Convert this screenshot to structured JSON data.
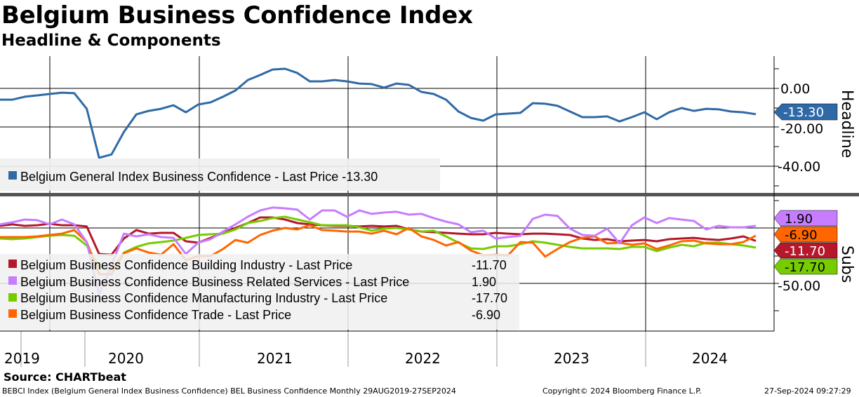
{
  "header": {
    "title": "Belgium Business Confidence Index",
    "subtitle": "Headline & Components"
  },
  "colors": {
    "headline": "#2f6aa6",
    "building": "#b5172b",
    "services": "#c77dff",
    "manufacturing": "#77cc00",
    "trade": "#ff6600"
  },
  "chart_data": [
    {
      "type": "line",
      "panel": "Headline",
      "x_start": "Aug 2019",
      "x_end": "Sep 2024",
      "frequency": "Monthly",
      "ylim": [
        -53,
        17
      ],
      "yticks": [
        "0.00",
        "-20.00",
        "-40.00"
      ],
      "ytick_values": [
        0,
        -20,
        -40
      ],
      "last_value_tag": "-13.30",
      "legend": "Belgium General Index Business Confidence - Last Price -13.30",
      "series": [
        {
          "name": "Belgium General Index Business Confidence",
          "key": "headline",
          "values": [
            -5.8,
            -5.8,
            -4.3,
            -3.6,
            -2.9,
            -2.2,
            -2.5,
            -10.5,
            -35.7,
            -34.0,
            -22.4,
            -13.4,
            -11.6,
            -10.5,
            -8.7,
            -12.3,
            -8.3,
            -7.2,
            -4.3,
            -1.1,
            4.3,
            6.9,
            9.7,
            10.1,
            7.9,
            3.6,
            3.6,
            4.3,
            3.6,
            2.5,
            2.2,
            0.4,
            2.5,
            1.8,
            -1.8,
            -2.9,
            -5.8,
            -11.9,
            -15.2,
            -16.6,
            -13.4,
            -13.0,
            -12.6,
            -7.6,
            -7.9,
            -9.0,
            -11.9,
            -14.8,
            -14.8,
            -14.4,
            -17.0,
            -14.8,
            -12.3,
            -15.9,
            -12.3,
            -10.1,
            -11.6,
            -10.5,
            -10.8,
            -11.9,
            -12.3,
            -13.3
          ]
        }
      ]
    },
    {
      "type": "line",
      "panel": "Subs",
      "x_start": "Aug 2019",
      "x_end": "Sep 2024",
      "ylim": [
        -93,
        28
      ],
      "yticks": [
        "-50.00"
      ],
      "ytick_values": [
        -50
      ],
      "gridlines": [
        0,
        -50
      ],
      "series": [
        {
          "name": "Belgium Business Confidence Building Industry",
          "key": "building",
          "legend_label": "Belgium Business Confidence Building Industry - Last Price",
          "last": "-11.70",
          "values": [
            1.9,
            3.2,
            1.9,
            2.5,
            3.8,
            2.5,
            2.5,
            1.3,
            -23.4,
            -24.1,
            -9.5,
            -1.9,
            -5.1,
            -4.4,
            -4.4,
            -12.0,
            -13.3,
            -8.9,
            -4.4,
            0,
            4.4,
            9.5,
            9.5,
            7.6,
            4.4,
            3.2,
            2.5,
            1.9,
            1.9,
            1.3,
            1.9,
            1.3,
            1.9,
            -1.3,
            -3.2,
            -3.8,
            -4.4,
            -5.1,
            -5.7,
            -5.7,
            -4.4,
            -5.1,
            -5.7,
            -5.1,
            -5.1,
            -5.7,
            -6.3,
            -9.5,
            -10.8,
            -10.1,
            -12.0,
            -11.4,
            -10.8,
            -12.0,
            -10.1,
            -9.5,
            -8.9,
            -10.1,
            -10.8,
            -9.5,
            -7.6,
            -11.7
          ]
        },
        {
          "name": "Belgium Business Confidence Business Related Services",
          "key": "services",
          "legend_label": "Belgium Business Confidence Business Related Services - Last Price",
          "last": "1.90",
          "values": [
            3.2,
            5.1,
            7.6,
            7.0,
            3.2,
            7.6,
            3.2,
            -12.7,
            -60.1,
            -33.5,
            -5.1,
            -7.6,
            -5.7,
            -8.2,
            -8.9,
            -23.4,
            -13.3,
            -10.1,
            -3.2,
            3.2,
            10.1,
            15.8,
            18.4,
            17.7,
            16.5,
            7.6,
            15.8,
            15.8,
            10.1,
            15.8,
            12.7,
            13.9,
            14.6,
            12.0,
            12.7,
            8.9,
            5.7,
            3.2,
            -3.8,
            -2.5,
            -9.5,
            -8.2,
            -7.0,
            8.2,
            12.0,
            10.8,
            -0.6,
            -6.3,
            -7.0,
            -0.6,
            -13.9,
            2.5,
            9.5,
            4.4,
            8.9,
            7.6,
            6.3,
            -1.3,
            1.9,
            0.6,
            0.6,
            1.9
          ]
        },
        {
          "name": "Belgium Business Confidence Manufacturing Industry",
          "key": "manufacturing",
          "legend_label": "Belgium Business Confidence Manufacturing Industry - Last Price",
          "last": "-17.70",
          "values": [
            -9.5,
            -10.1,
            -9.5,
            -8.2,
            -7.0,
            -6.3,
            -7.0,
            -15.8,
            -34.8,
            -38.0,
            -22.2,
            -17.1,
            -13.9,
            -12.7,
            -11.4,
            -8.9,
            -6.3,
            -5.7,
            -5.1,
            -1.3,
            4.4,
            6.3,
            8.9,
            10.1,
            7.6,
            5.1,
            2.5,
            2.5,
            2.5,
            0.6,
            -2.5,
            -0.6,
            0,
            -1.3,
            -3.2,
            -2.5,
            -7.6,
            -13.3,
            -18.4,
            -19.0,
            -16.5,
            -16.5,
            -14.6,
            -12.0,
            -13.3,
            -15.2,
            -17.1,
            -18.4,
            -18.4,
            -18.4,
            -19.0,
            -17.1,
            -17.1,
            -20.9,
            -17.7,
            -15.2,
            -16.5,
            -13.3,
            -13.3,
            -14.6,
            -15.8,
            -17.7
          ]
        },
        {
          "name": "Belgium Business Confidence Trade",
          "key": "trade",
          "legend_label": "Belgium Business Confidence Trade - Last Price",
          "last": "-6.90",
          "values": [
            -8.2,
            -8.2,
            -8.2,
            -7.6,
            -6.3,
            -5.1,
            -1.9,
            -12.7,
            -41.8,
            -41.8,
            -22.8,
            -18.4,
            -22.2,
            -24.1,
            -14.6,
            -29.1,
            -25.3,
            -25.3,
            -19.0,
            -10.8,
            -13.3,
            -6.3,
            -2.5,
            0,
            -1.3,
            2.5,
            -1.9,
            -2.5,
            -3.2,
            -3.2,
            -5.1,
            -2.5,
            -5.7,
            0,
            -7.6,
            -10.8,
            -15.8,
            -12.7,
            -20.3,
            -24.7,
            -24.1,
            -24.7,
            -12.7,
            -13.3,
            -25.9,
            -19.0,
            -12.7,
            -8.9,
            -7.6,
            -13.9,
            -13.3,
            -15.2,
            -13.9,
            -19.0,
            -15.8,
            -12.0,
            -11.4,
            -13.9,
            -14.6,
            -14.6,
            -12.7,
            -6.9
          ]
        }
      ],
      "tags": {
        "services": "1.90",
        "trade": "-6.90",
        "manufacturing": "-17.70",
        "building": "-11.70"
      }
    }
  ],
  "xaxis": {
    "years": [
      "2019",
      "2020",
      "2021",
      "2022",
      "2023",
      "2024"
    ]
  },
  "footer": {
    "source": "Source: CHARTbeat",
    "description": "BEBCI Index (Belgium General Index Business Confidence) BEL Business Confidence  Monthly 29AUG2019-27SEP2024",
    "copyright": "Copyright© 2024 Bloomberg Finance L.P.",
    "timestamp": "27-Sep-2024 09:27:29"
  }
}
